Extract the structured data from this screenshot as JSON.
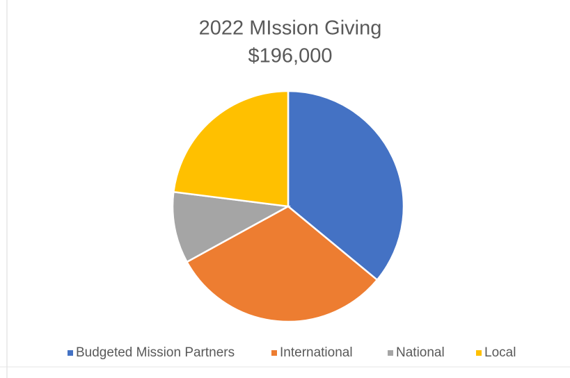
{
  "chart_data": {
    "type": "pie",
    "title": "2022 MIssion Giving",
    "subtitle": "$196,000",
    "categories": [
      "Budgeted Mission Partners",
      "International",
      "National",
      "Local"
    ],
    "values": [
      36,
      31,
      10,
      23
    ],
    "colors": [
      "#4472c4",
      "#ed7d31",
      "#a5a5a5",
      "#ffc000"
    ],
    "legend": "bottom"
  }
}
